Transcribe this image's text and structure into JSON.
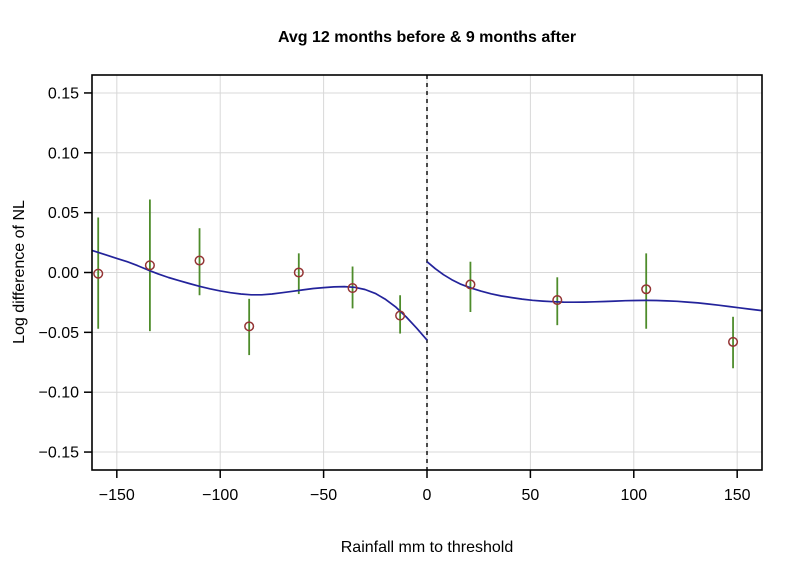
{
  "chart_data": {
    "type": "scatter",
    "title": "Avg 12 months before & 9 months after",
    "xlabel": "Rainfall mm to threshold",
    "ylabel": "Log difference of NL",
    "xlim": [
      -162,
      162
    ],
    "ylim": [
      -0.165,
      0.165
    ],
    "x_ticks": [
      -150,
      -100,
      -50,
      0,
      50,
      100,
      150
    ],
    "y_ticks": [
      0.15,
      0.1,
      0.05,
      0.0,
      -0.05,
      -0.1,
      -0.15
    ],
    "grid": true,
    "legend": "none",
    "threshold_line": {
      "x": 0,
      "style": "dashed"
    },
    "points": [
      {
        "x": -159,
        "y": -0.001,
        "ci_low": -0.047,
        "ci_high": 0.046
      },
      {
        "x": -134,
        "y": 0.006,
        "ci_low": -0.049,
        "ci_high": 0.061
      },
      {
        "x": -110,
        "y": 0.01,
        "ci_low": -0.019,
        "ci_high": 0.037
      },
      {
        "x": -86,
        "y": -0.045,
        "ci_low": -0.069,
        "ci_high": -0.022
      },
      {
        "x": -62,
        "y": 0.0,
        "ci_low": -0.018,
        "ci_high": 0.016
      },
      {
        "x": -36,
        "y": -0.013,
        "ci_low": -0.03,
        "ci_high": 0.005
      },
      {
        "x": -13,
        "y": -0.036,
        "ci_low": -0.051,
        "ci_high": -0.019
      },
      {
        "x": 21,
        "y": -0.01,
        "ci_low": -0.033,
        "ci_high": 0.009
      },
      {
        "x": 63,
        "y": -0.023,
        "ci_low": -0.044,
        "ci_high": -0.004
      },
      {
        "x": 106,
        "y": -0.014,
        "ci_low": -0.047,
        "ci_high": 0.016
      },
      {
        "x": 148,
        "y": -0.058,
        "ci_low": -0.08,
        "ci_high": -0.037
      }
    ],
    "fit_left": [
      [
        -162,
        0.0185
      ],
      [
        -155,
        0.0145
      ],
      [
        -150,
        0.0118
      ],
      [
        -145,
        0.009
      ],
      [
        -140,
        0.0058
      ],
      [
        -135,
        0.0022
      ],
      [
        -130,
        -0.0012
      ],
      [
        -125,
        -0.0042
      ],
      [
        -120,
        -0.0068
      ],
      [
        -115,
        -0.0092
      ],
      [
        -110,
        -0.0115
      ],
      [
        -105,
        -0.0136
      ],
      [
        -100,
        -0.0154
      ],
      [
        -95,
        -0.0169
      ],
      [
        -90,
        -0.018
      ],
      [
        -85,
        -0.0186
      ],
      [
        -80,
        -0.0186
      ],
      [
        -75,
        -0.018
      ],
      [
        -70,
        -0.0169
      ],
      [
        -65,
        -0.0157
      ],
      [
        -60,
        -0.0145
      ],
      [
        -55,
        -0.0134
      ],
      [
        -50,
        -0.0126
      ],
      [
        -45,
        -0.012
      ],
      [
        -40,
        -0.0118
      ],
      [
        -35,
        -0.0124
      ],
      [
        -30,
        -0.0142
      ],
      [
        -25,
        -0.0175
      ],
      [
        -20,
        -0.0225
      ],
      [
        -15,
        -0.029
      ],
      [
        -10,
        -0.0372
      ],
      [
        -5,
        -0.0465
      ],
      [
        0,
        -0.0565
      ]
    ],
    "fit_right": [
      [
        0,
        0.009
      ],
      [
        4,
        0.0032
      ],
      [
        8,
        -0.0018
      ],
      [
        12,
        -0.006
      ],
      [
        16,
        -0.0095
      ],
      [
        21,
        -0.0128
      ],
      [
        26,
        -0.0155
      ],
      [
        31,
        -0.0178
      ],
      [
        36,
        -0.0196
      ],
      [
        41,
        -0.021
      ],
      [
        46,
        -0.0222
      ],
      [
        51,
        -0.0232
      ],
      [
        56,
        -0.0239
      ],
      [
        61,
        -0.0244
      ],
      [
        66,
        -0.0247
      ],
      [
        71,
        -0.0248
      ],
      [
        76,
        -0.0247
      ],
      [
        81,
        -0.0245
      ],
      [
        86,
        -0.0242
      ],
      [
        91,
        -0.0239
      ],
      [
        96,
        -0.0236
      ],
      [
        101,
        -0.0234
      ],
      [
        106,
        -0.0233
      ],
      [
        111,
        -0.0234
      ],
      [
        116,
        -0.0237
      ],
      [
        121,
        -0.0241
      ],
      [
        126,
        -0.0247
      ],
      [
        131,
        -0.0254
      ],
      [
        136,
        -0.0263
      ],
      [
        141,
        -0.0273
      ],
      [
        146,
        -0.0284
      ],
      [
        151,
        -0.0295
      ],
      [
        156,
        -0.0306
      ],
      [
        162,
        -0.0318
      ]
    ],
    "colors": {
      "point": "#943434",
      "error_bar": "#4e8c2b",
      "fit_line": "#23239b",
      "threshold_line": "#000000",
      "grid": "#d8d8d8",
      "axis": "#000000",
      "background": "#ffffff"
    }
  }
}
